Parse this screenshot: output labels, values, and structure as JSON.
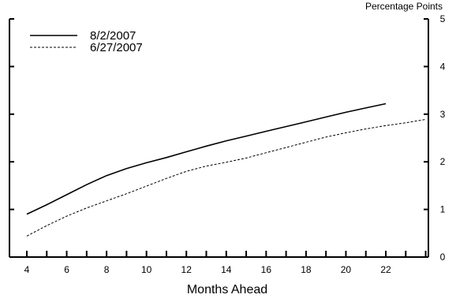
{
  "chart_data": {
    "type": "line",
    "title": "",
    "xlabel": "Months Ahead",
    "ylabel": "Percentage Points",
    "xlim": [
      3,
      25
    ],
    "ylim": [
      0,
      5
    ],
    "x_ticks": [
      4,
      6,
      8,
      10,
      12,
      14,
      16,
      18,
      20,
      22
    ],
    "x_minor_ticks": [
      5,
      7,
      9,
      11,
      13,
      15,
      17,
      19,
      21,
      23,
      24
    ],
    "y_ticks": [
      0,
      1,
      2,
      3,
      4,
      5
    ],
    "grid": false,
    "legend_position": "top-left",
    "series": [
      {
        "name": "8/2/2007",
        "style": "solid",
        "x": [
          4,
          5,
          6,
          7,
          8,
          9,
          10,
          11,
          12,
          13,
          14,
          15,
          16,
          17,
          18,
          19,
          20,
          21,
          22
        ],
        "y": [
          0.9,
          1.1,
          1.31,
          1.52,
          1.71,
          1.86,
          1.98,
          2.09,
          2.21,
          2.33,
          2.44,
          2.54,
          2.64,
          2.74,
          2.84,
          2.94,
          3.04,
          3.13,
          3.22
        ]
      },
      {
        "name": "6/27/2007",
        "style": "dashed",
        "x": [
          4,
          5,
          6,
          7,
          8,
          9,
          10,
          11,
          12,
          13,
          14,
          15,
          16,
          17,
          18,
          19,
          20,
          21,
          22,
          23,
          24
        ],
        "y": [
          0.44,
          0.66,
          0.86,
          1.03,
          1.18,
          1.33,
          1.49,
          1.65,
          1.8,
          1.91,
          1.99,
          2.08,
          2.19,
          2.3,
          2.41,
          2.52,
          2.61,
          2.69,
          2.76,
          2.82,
          2.89
        ]
      }
    ]
  }
}
